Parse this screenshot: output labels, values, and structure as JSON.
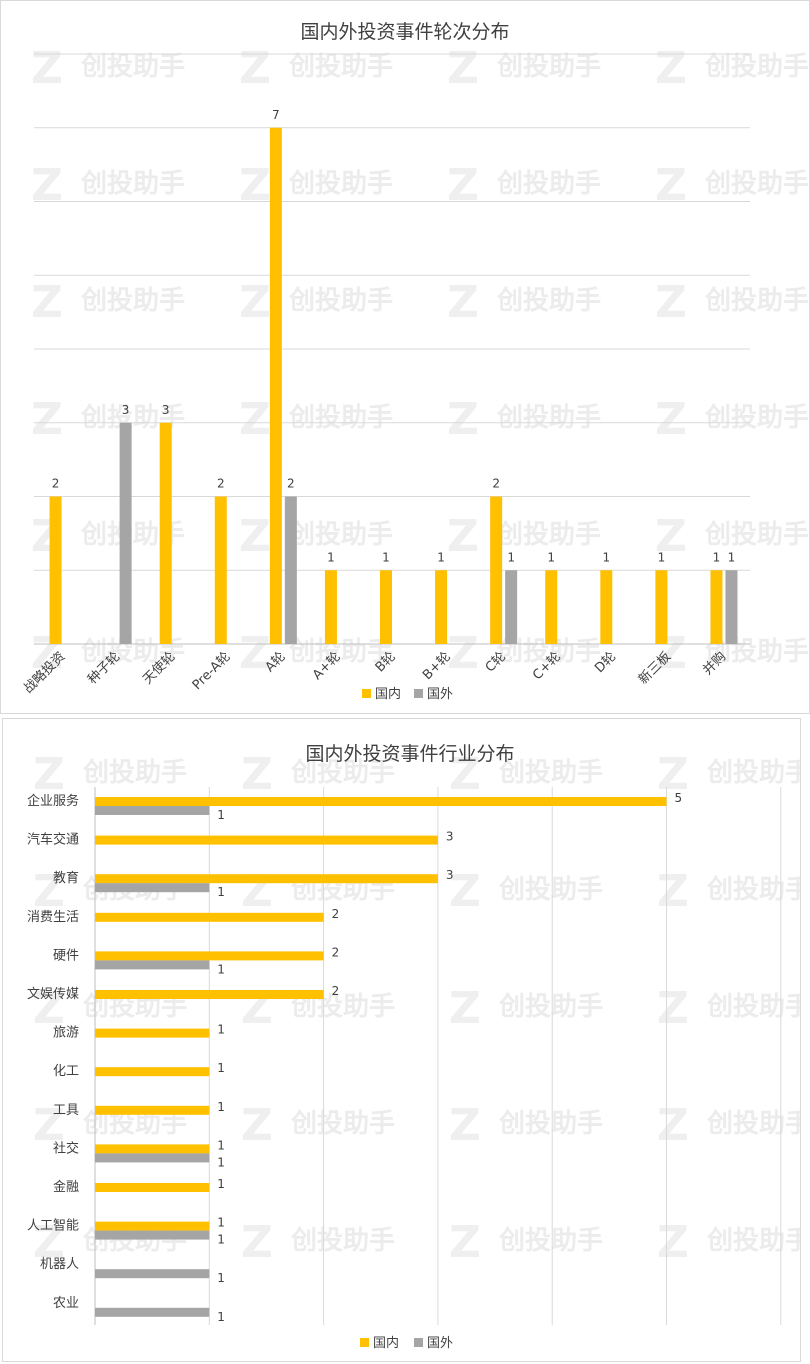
{
  "colors": {
    "domestic": "#FFC000",
    "foreign": "#A5A5A5"
  },
  "watermark": "创投助手",
  "chart_data": [
    {
      "type": "bar",
      "orientation": "vertical",
      "title": "国内外投资事件轮次分布",
      "categories": [
        "战略投资",
        "种子轮",
        "天使轮",
        "Pre-A轮",
        "A轮",
        "A+轮",
        "B轮",
        "B+轮",
        "C轮",
        "C+轮",
        "D轮",
        "新三板",
        "并购"
      ],
      "series": [
        {
          "name": "国内",
          "values": [
            2,
            0,
            3,
            2,
            7,
            1,
            1,
            1,
            2,
            1,
            1,
            1,
            1
          ]
        },
        {
          "name": "国外",
          "values": [
            0,
            3,
            0,
            0,
            2,
            0,
            0,
            0,
            1,
            0,
            0,
            0,
            1
          ]
        }
      ],
      "ylim": [
        0,
        8
      ],
      "grid": true,
      "legend": "bottom"
    },
    {
      "type": "bar",
      "orientation": "horizontal",
      "title": "国内外投资事件行业分布",
      "categories": [
        "企业服务",
        "汽车交通",
        "教育",
        "消费生活",
        "硬件",
        "文娱传媒",
        "旅游",
        "化工",
        "工具",
        "社交",
        "金融",
        "人工智能",
        "机器人",
        "农业"
      ],
      "series": [
        {
          "name": "国内",
          "values": [
            5,
            3,
            3,
            2,
            2,
            2,
            1,
            1,
            1,
            1,
            1,
            1,
            0,
            0
          ]
        },
        {
          "name": "国外",
          "values": [
            1,
            0,
            1,
            0,
            1,
            0,
            0,
            0,
            0,
            1,
            0,
            1,
            1,
            1
          ]
        }
      ],
      "xlim": [
        0,
        6
      ],
      "grid": true,
      "legend": "bottom"
    }
  ]
}
